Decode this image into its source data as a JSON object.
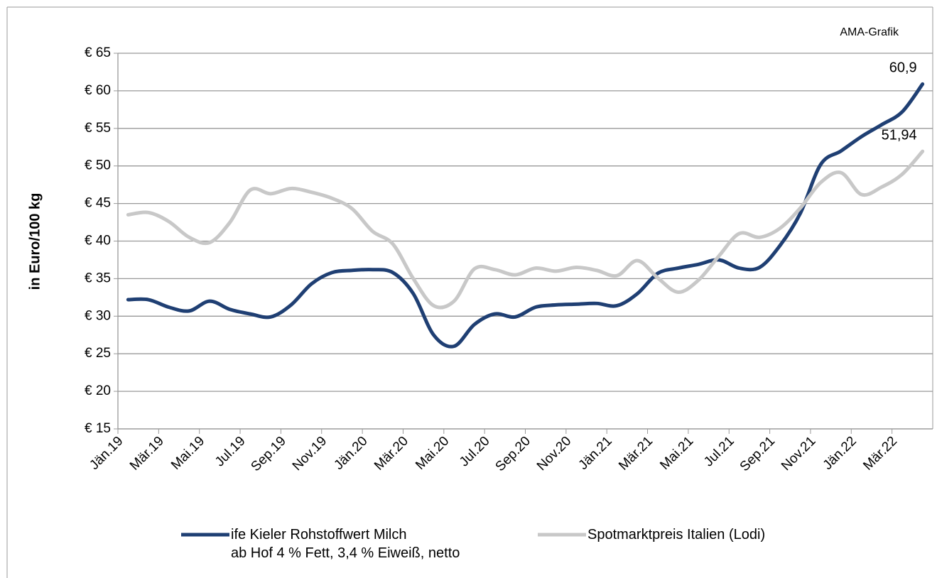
{
  "chart_data": {
    "type": "line",
    "annotation": "AMA-Grafik",
    "y_label": "in Euro/100 kg",
    "categories": [
      "Jän.19",
      null,
      "Mär.19",
      null,
      "Mai.19",
      null,
      "Jul.19",
      null,
      "Sep.19",
      null,
      "Nov.19",
      null,
      "Jän.20",
      null,
      "Mär.20",
      null,
      "Mai.20",
      null,
      "Jul.20",
      null,
      "Sep.20",
      null,
      "Nov.20",
      null,
      "Jän.21",
      null,
      "Mär.21",
      null,
      "Mai.21",
      null,
      "Jul.21",
      null,
      "Sep.21",
      null,
      "Nov.21",
      null,
      "Jän.22",
      null,
      "Mär.22",
      null
    ],
    "series": [
      {
        "name": "ife Kieler Rohstoffwert Milch\nab Hof 4 % Fett, 3,4 % Eiweiß, netto",
        "color": "#1f3f73",
        "values": [
          32.2,
          32.2,
          31.2,
          30.7,
          32.0,
          30.9,
          30.3,
          29.9,
          31.5,
          34.3,
          35.8,
          36.1,
          36.2,
          35.8,
          33.0,
          27.5,
          26.0,
          28.9,
          30.3,
          29.9,
          31.2,
          31.5,
          31.6,
          31.7,
          31.4,
          33.0,
          35.7,
          36.4,
          36.9,
          37.5,
          36.4,
          36.5,
          39.4,
          43.7,
          50.2,
          52.0,
          53.9,
          55.5,
          57.2,
          60.9
        ],
        "value_labels": [
          null,
          null,
          null,
          null,
          null,
          null,
          null,
          null,
          null,
          null,
          null,
          null,
          null,
          null,
          null,
          null,
          null,
          null,
          null,
          null,
          null,
          null,
          null,
          null,
          null,
          null,
          null,
          null,
          null,
          null,
          null,
          null,
          null,
          null,
          null,
          null,
          null,
          null,
          null,
          "60,9"
        ]
      },
      {
        "name": "Spotmarktpreis Italien (Lodi)",
        "color": "#c8c8c8",
        "values": [
          43.5,
          43.8,
          42.6,
          40.5,
          39.8,
          42.5,
          46.8,
          46.3,
          47.0,
          46.5,
          45.7,
          44.3,
          41.3,
          39.6,
          35.0,
          31.4,
          32.0,
          36.3,
          36.2,
          35.5,
          36.4,
          36.0,
          36.5,
          36.1,
          35.4,
          37.4,
          35.1,
          33.2,
          34.8,
          38.0,
          41.0,
          40.5,
          41.7,
          44.4,
          47.8,
          49.1,
          46.2,
          47.2,
          48.9,
          51.94
        ],
        "value_labels": [
          null,
          null,
          null,
          null,
          null,
          null,
          null,
          null,
          null,
          null,
          null,
          null,
          null,
          null,
          null,
          null,
          null,
          null,
          null,
          null,
          null,
          null,
          null,
          null,
          null,
          null,
          null,
          null,
          null,
          null,
          null,
          null,
          null,
          null,
          null,
          null,
          null,
          null,
          null,
          "51,94"
        ]
      }
    ],
    "ylim": [
      15,
      65
    ],
    "yticks": [
      {
        "value": 15,
        "label": "€ 15"
      },
      {
        "value": 20,
        "label": "€ 20"
      },
      {
        "value": 25,
        "label": "€ 25"
      },
      {
        "value": 30,
        "label": "€ 30"
      },
      {
        "value": 35,
        "label": "€ 35"
      },
      {
        "value": 40,
        "label": "€ 40"
      },
      {
        "value": 45,
        "label": "€ 45"
      },
      {
        "value": 50,
        "label": "€ 50"
      },
      {
        "value": 55,
        "label": "€ 55"
      },
      {
        "value": 60,
        "label": "€ 60"
      },
      {
        "value": 65,
        "label": "€ 65"
      }
    ],
    "grid": true,
    "legend": "bottom"
  }
}
